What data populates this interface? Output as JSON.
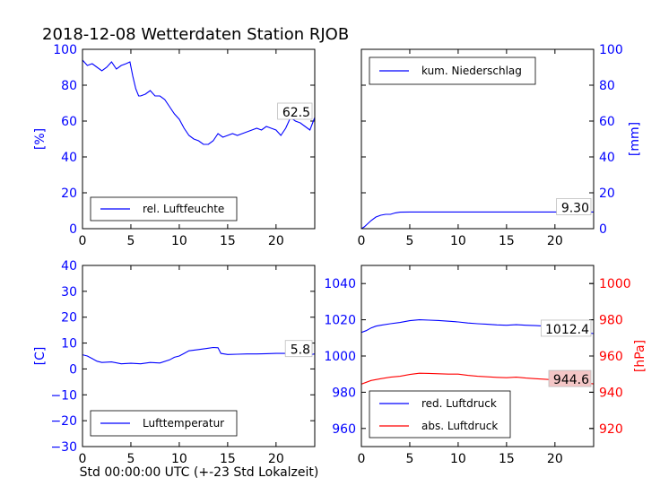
{
  "figure_title": "2018-12-08 Wetterdaten Station RJOB",
  "shared_xlabel": "Std 00:00:00 UTC (+-23 Std Lokalzeit)",
  "colors": {
    "blue": "#0000ff",
    "red": "#ff0000",
    "annot_bg_red": "#f4c6c6"
  },
  "chart_data": [
    {
      "type": "line",
      "xlim": [
        0,
        24
      ],
      "ylim": [
        0,
        100
      ],
      "xticks": [
        0,
        5,
        10,
        15,
        20
      ],
      "yticks": [
        0,
        20,
        40,
        60,
        80,
        100
      ],
      "ylabel": "[%]",
      "ylabel_side": "left",
      "legend_location": "lower-left",
      "series": [
        {
          "name": "rel. Luftfeuchte",
          "color": "#0000ff",
          "x": [
            0,
            0.5,
            1,
            1.5,
            2,
            2.5,
            3,
            3.5,
            4,
            4.5,
            4.9,
            5.2,
            5.5,
            5.8,
            6,
            6.5,
            7,
            7.5,
            8,
            8.5,
            9,
            9.5,
            10,
            10.5,
            11,
            11.5,
            12,
            12.5,
            13,
            13.5,
            14,
            14.5,
            15,
            15.5,
            16,
            16.5,
            17,
            17.5,
            18,
            18.5,
            19,
            19.5,
            20,
            20.5,
            21,
            21.5,
            22,
            22.5,
            23,
            23.5,
            24
          ],
          "y": [
            94,
            91,
            92,
            90,
            88,
            90,
            93,
            89,
            91,
            92,
            93,
            85,
            78,
            74,
            74,
            75,
            77,
            74,
            74,
            72,
            68,
            64,
            61,
            56,
            52,
            50,
            49,
            47,
            47,
            49,
            53,
            51,
            52,
            53,
            52,
            53,
            54,
            55,
            56,
            55,
            57,
            56,
            55,
            52,
            56,
            62,
            60,
            59,
            57,
            55,
            62
          ]
        }
      ],
      "annotation": {
        "text": "62.5",
        "x": 24,
        "y": 62.5
      }
    },
    {
      "type": "line",
      "xlim": [
        0,
        24
      ],
      "ylim": [
        0,
        100
      ],
      "xticks": [
        0,
        5,
        10,
        15,
        20
      ],
      "yticks": [
        0,
        20,
        40,
        60,
        80,
        100
      ],
      "ylabel": "[mm]",
      "ylabel_side": "right",
      "legend_location": "upper-left",
      "series": [
        {
          "name": "kum. Niederschlag",
          "color": "#0000ff",
          "x": [
            0,
            0.3,
            0.6,
            1,
            1.5,
            2,
            2.5,
            3,
            3.5,
            4,
            5,
            8,
            12,
            16,
            20,
            24
          ],
          "y": [
            0,
            1,
            2.5,
            4.5,
            6.5,
            7.5,
            8,
            8,
            8.8,
            9.2,
            9.3,
            9.3,
            9.3,
            9.3,
            9.3,
            9.3
          ]
        }
      ],
      "annotation": {
        "text": "9.30",
        "x": 24,
        "y": 9.3
      }
    },
    {
      "type": "line",
      "xlim": [
        0,
        24
      ],
      "ylim": [
        -30,
        40
      ],
      "xticks": [
        0,
        5,
        10,
        15,
        20
      ],
      "yticks": [
        -30,
        -20,
        -10,
        0,
        10,
        20,
        30,
        40
      ],
      "ylabel": "[C]",
      "ylabel_side": "left",
      "legend_location": "lower-left",
      "series": [
        {
          "name": "Lufttemperatur",
          "color": "#0000ff",
          "x": [
            0,
            0.5,
            1,
            1.5,
            2,
            3,
            4,
            5,
            6,
            7,
            8,
            9,
            9.5,
            10,
            10.5,
            11,
            12,
            13,
            13.5,
            14,
            14.3,
            15,
            16,
            17,
            18,
            19,
            20,
            21,
            22,
            22.5,
            23,
            24
          ],
          "y": [
            5.5,
            5,
            4,
            3,
            2.5,
            2.7,
            2,
            2.2,
            2,
            2.5,
            2.3,
            3.5,
            4.5,
            5,
            6,
            7,
            7.5,
            8,
            8.3,
            8.2,
            6,
            5.6,
            5.7,
            5.8,
            5.8,
            5.9,
            6,
            6,
            5.5,
            5,
            5.2,
            5.8
          ]
        }
      ],
      "annotation": {
        "text": "5.8",
        "x": 24,
        "y": 5.8
      }
    },
    {
      "type": "line",
      "xlim": [
        0,
        24
      ],
      "ylim": [
        950,
        1050
      ],
      "xticks": [
        0,
        5,
        10,
        15,
        20
      ],
      "yticks": [
        960,
        980,
        1000,
        1020,
        1040
      ],
      "y2lim": [
        910,
        1010
      ],
      "y2ticks": [
        920,
        940,
        960,
        980,
        1000
      ],
      "y2label": "[hPa]",
      "legend_location": "lower-left",
      "series": [
        {
          "name": "red. Luftdruck",
          "color": "#0000ff",
          "axis": "left",
          "x": [
            0,
            0.5,
            1,
            1.5,
            2,
            3,
            4,
            5,
            6,
            7,
            8,
            9,
            10,
            11,
            12,
            13,
            14,
            15,
            16,
            17,
            18,
            19,
            20,
            21,
            22,
            23,
            24
          ],
          "y": [
            1013,
            1014,
            1015.5,
            1016.5,
            1017,
            1017.8,
            1018.5,
            1019.5,
            1020,
            1019.8,
            1019.6,
            1019.2,
            1018.8,
            1018.2,
            1017.8,
            1017.5,
            1017.2,
            1017,
            1017.3,
            1017,
            1016.8,
            1016.5,
            1016,
            1015,
            1014,
            1013,
            1012.4
          ]
        },
        {
          "name": "abs. Luftdruck",
          "color": "#ff0000",
          "axis": "right",
          "x": [
            0,
            0.5,
            1,
            1.5,
            2,
            3,
            4,
            5,
            6,
            7,
            8,
            9,
            10,
            11,
            12,
            13,
            14,
            15,
            16,
            17,
            18,
            19,
            20,
            21,
            22,
            23,
            24
          ],
          "y": [
            944.5,
            945.5,
            946.5,
            947,
            947.5,
            948.3,
            948.8,
            949.8,
            950.5,
            950.4,
            950.2,
            950,
            950,
            949.3,
            948.8,
            948.5,
            948.2,
            948,
            948.3,
            947.8,
            947.5,
            947.2,
            946.8,
            946.3,
            945.8,
            945.2,
            944.6
          ]
        }
      ],
      "annotations": [
        {
          "text": "1012.4",
          "x": 24,
          "y": 1012.4,
          "axis": "left",
          "bg": "#ffffff"
        },
        {
          "text": "944.6",
          "x": 24,
          "y": 944.6,
          "axis": "right",
          "bg": "#f4c6c6"
        }
      ]
    }
  ]
}
